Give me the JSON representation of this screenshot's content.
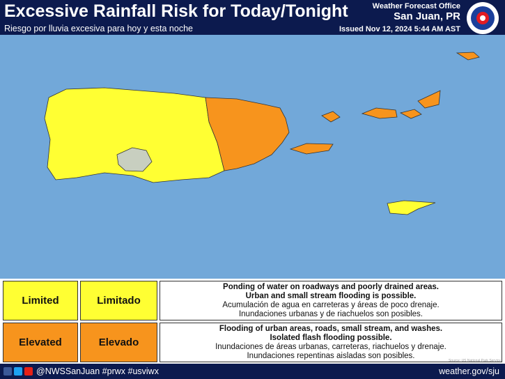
{
  "header": {
    "title": "Excessive Rainfall Risk for Today/Tonight",
    "subtitle": "Riesgo por lluvia excesiva para hoy y esta noche",
    "office": "Weather Forecast Office",
    "location": "San Juan, PR",
    "issued": "Issued Nov 12, 2024 5:44 AM AST"
  },
  "legend": {
    "rows": [
      {
        "label_en": "Limited",
        "label_es": "Limitado",
        "lines": [
          "Ponding of water on roadways and poorly drained areas.",
          "Urban and small stream flooding is possible.",
          "Acumulación de agua en carreteras y áreas de poco drenaje.",
          "Inundaciones urbanas y de riachuelos son posibles."
        ]
      },
      {
        "label_en": "Elevated",
        "label_es": "Elevado",
        "lines": [
          "Flooding of urban areas, roads, small stream, and washes.",
          "Isolated flash flooding possible.",
          "Inundaciones de áreas urbanas, carreteras, riachuelos y drenaje.",
          "Inundaciones repentinas aisladas son posibles."
        ]
      }
    ]
  },
  "source": "Source: US National Park Service",
  "footer": {
    "social": "@NWSSanJuan #prwx #usviwx",
    "url": "weather.gov/sju"
  }
}
